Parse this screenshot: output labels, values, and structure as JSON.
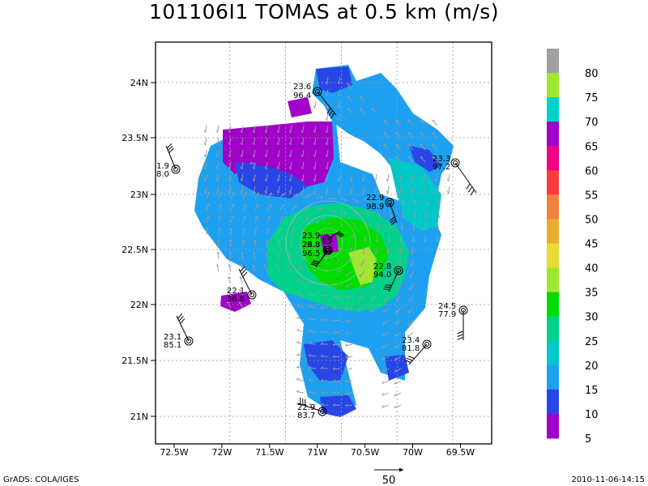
{
  "title": "101106I1 TOMAS at 0.5 km (m/s)",
  "axes": {
    "lon_ticks": [
      "72.5W",
      "72W",
      "71.5W",
      "71W",
      "70.5W",
      "70W",
      "69.5W"
    ],
    "lat_ticks": [
      "24N",
      "23.5N",
      "23N",
      "22.5N",
      "22N",
      "21.5N",
      "21N"
    ]
  },
  "colorbar": {
    "levels": [
      "80",
      "75",
      "70",
      "65",
      "60",
      "55",
      "50",
      "45",
      "40",
      "35",
      "30",
      "25",
      "20",
      "15",
      "10",
      "5"
    ],
    "colors": [
      "#a0a0a0",
      "#a0e632",
      "#00d2c8",
      "#a000c8",
      "#f00082",
      "#fa3c3c",
      "#f0823c",
      "#e6af2d",
      "#e6dc32",
      "#a0e632",
      "#00dc00",
      "#00d28c",
      "#00c8c8",
      "#1ea0f0",
      "#2846e6",
      "#a000c8"
    ]
  },
  "observations": [
    {
      "speed": "23.6",
      "pressure": "96.4"
    },
    {
      "speed": "1.9",
      "pressure": "8.0"
    },
    {
      "speed": "23.3",
      "pressure": "97.2"
    },
    {
      "speed": "22.9",
      "pressure": "98.9"
    },
    {
      "speed": "23.9",
      "pressure": ""
    },
    {
      "speed": "26.8",
      "pressure": ""
    },
    {
      "speed": "22.8",
      "pressure": "96.5"
    },
    {
      "speed": "22.8",
      "pressure": "94.0"
    },
    {
      "speed": "22.1",
      "pressure": "36.8"
    },
    {
      "speed": "24.5",
      "pressure": "77.9"
    },
    {
      "speed": "23.1",
      "pressure": "85.1"
    },
    {
      "speed": "23.4",
      "pressure": "81.8"
    },
    {
      "speed": "22.9",
      "pressure": "83.7"
    }
  ],
  "reference_vector_label": "50",
  "footer": {
    "left": "GrADS: COLA/IGES",
    "right": "2010-11-06-14:15"
  },
  "icons": [
    "wind-barb-icon",
    "station-circle-icon",
    "reference-arrow-icon"
  ]
}
